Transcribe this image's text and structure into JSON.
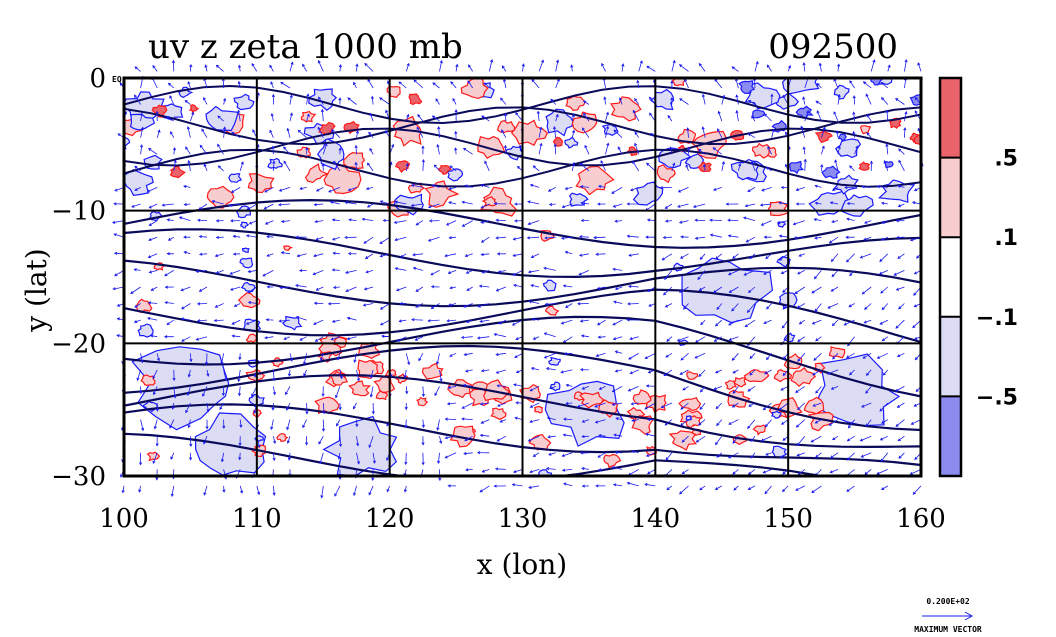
{
  "chart_data": {
    "type": "heatmap",
    "title": "uv z zeta 1000 mb",
    "date_label": "092500",
    "xlabel": "x (lon)",
    "ylabel": "y (lat)",
    "xlim": [
      100,
      160
    ],
    "ylim": [
      -30,
      0
    ],
    "x_ticks": [
      "100",
      "110",
      "120",
      "130",
      "140",
      "150",
      "160"
    ],
    "y_ticks": [
      "0",
      "−10",
      "−20",
      "−30"
    ],
    "y_tick_values": [
      0,
      -10,
      -20,
      -30
    ],
    "x_tick_values": [
      100,
      110,
      120,
      130,
      140,
      150,
      160
    ],
    "grid": true,
    "equator_label": "EQ",
    "colorbar": {
      "position": "right",
      "labels": [
        ".5",
        ".1",
        "−.1",
        "−.5"
      ],
      "label_values": [
        0.5,
        0.1,
        -0.1,
        -0.5
      ],
      "bins": [
        {
          "range": [
            0.5,
            1.0
          ],
          "color": "#e8646a"
        },
        {
          "range": [
            0.1,
            0.5
          ],
          "color": "#f8cdd0"
        },
        {
          "range": [
            -0.1,
            0.1
          ],
          "color": "#ffffff"
        },
        {
          "range": [
            -0.5,
            -0.1
          ],
          "color": "#dcdcf5"
        },
        {
          "range": [
            -1.0,
            -0.5
          ],
          "color": "#8c8cf0"
        }
      ]
    },
    "vector_legend": {
      "value": "0.200E+02",
      "caption": "MAXIMUM VECTOR"
    },
    "colors": {
      "positive_contour": "#ff1a1a",
      "negative_contour": "#1a1aff",
      "height_contour": "#0a0a5a",
      "vector": "#1a1aee",
      "grid": "#000000"
    }
  }
}
